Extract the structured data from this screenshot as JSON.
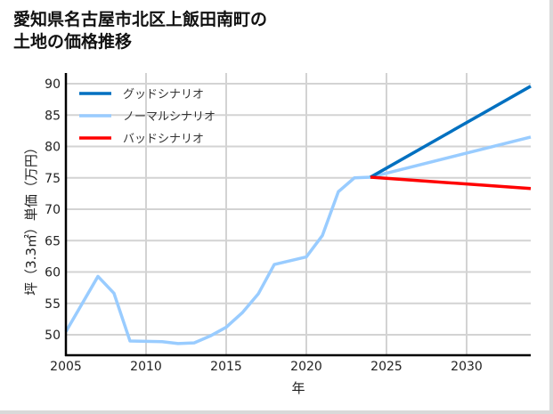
{
  "title": {
    "line1": "愛知県名古屋市北区上飯田南町の",
    "line2": "土地の価格推移"
  },
  "chart_data": {
    "type": "line",
    "title": "愛知県名古屋市北区上飯田南町の土地の価格推移",
    "xlabel": "年",
    "ylabel": "坪（3.3㎡）単価（万円）",
    "xlim": [
      2005,
      2034
    ],
    "ylim": [
      46.7,
      92
    ],
    "xticks": [
      "2005",
      "2010",
      "2015",
      "2020",
      "2025",
      "2030"
    ],
    "yticks": [
      "50",
      "55",
      "60",
      "65",
      "70",
      "75",
      "80",
      "85",
      "90"
    ],
    "grid": true,
    "legend_position": "upper left",
    "series": [
      {
        "name": "グッドシナリオ",
        "color": "#0070c0",
        "x": [
          2024,
          2034
        ],
        "values": [
          75.1,
          89.6
        ]
      },
      {
        "name": "ノーマルシナリオ",
        "color": "#99ccff",
        "x": [
          2005,
          2007,
          2008,
          2009,
          2011,
          2012,
          2013,
          2014,
          2015,
          2016,
          2017,
          2018,
          2020,
          2021,
          2022,
          2023,
          2024,
          2034
        ],
        "values": [
          50.5,
          59.3,
          56.6,
          49.0,
          48.9,
          48.6,
          48.7,
          49.8,
          51.2,
          53.5,
          56.5,
          61.2,
          62.4,
          65.8,
          72.8,
          75.0,
          75.1,
          81.5
        ]
      },
      {
        "name": "バッドシナリオ",
        "color": "#ff0000",
        "x": [
          2024,
          2034
        ],
        "values": [
          75.1,
          73.3
        ]
      }
    ]
  }
}
